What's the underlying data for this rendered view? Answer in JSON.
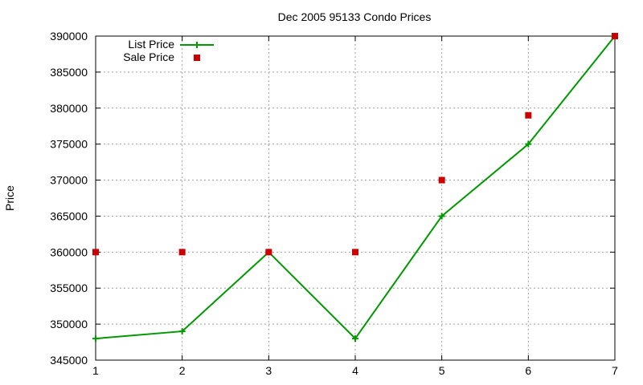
{
  "chart_data": {
    "type": "line",
    "title": "Dec 2005 95133 Condo Prices",
    "xlabel": "",
    "ylabel": "Price",
    "xlim": [
      1,
      7
    ],
    "ylim": [
      345000,
      390000
    ],
    "xticks": [
      "1",
      "2",
      "3",
      "4",
      "5",
      "6",
      "7"
    ],
    "yticks": [
      "345000",
      "350000",
      "355000",
      "360000",
      "365000",
      "370000",
      "375000",
      "380000",
      "385000",
      "390000"
    ],
    "grid": true,
    "legend_position": "top-left",
    "series": [
      {
        "name": "List Price",
        "style": "line-with-plus-markers",
        "color": "#009900",
        "x": [
          1,
          2,
          3,
          4,
          5,
          6,
          7
        ],
        "y": [
          348000,
          349000,
          360000,
          348000,
          365000,
          375000,
          390000
        ]
      },
      {
        "name": "Sale Price",
        "style": "square-markers",
        "color": "#cc0000",
        "x": [
          1,
          2,
          3,
          4,
          5,
          6,
          7
        ],
        "y": [
          360000,
          360000,
          360000,
          360000,
          370000,
          379000,
          390000
        ]
      }
    ]
  }
}
